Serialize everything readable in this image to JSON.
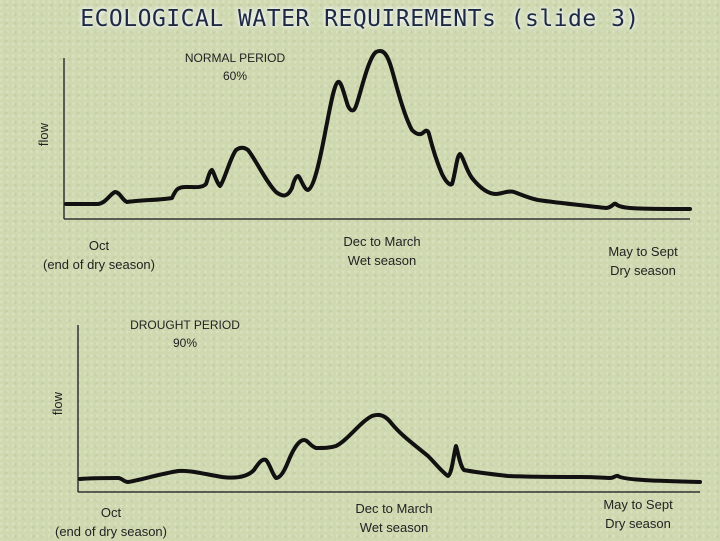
{
  "title": "ECOLOGICAL WATER REQUIREMENTs (slide 3)",
  "normal": {
    "period_label": "NORMAL PERIOD",
    "percent": "60%",
    "axis_label": "flow",
    "season_oct": "Oct",
    "season_oct_sub": "(end of dry season)",
    "season_wet": "Dec to March",
    "season_wet_sub": "Wet season",
    "season_dry": "May to Sept",
    "season_dry_sub": "Dry season"
  },
  "drought": {
    "period_label": "DROUGHT PERIOD",
    "percent": "90%",
    "axis_label": "flow",
    "season_oct": "Oct",
    "season_oct_sub": "(end of dry season)",
    "season_wet": "Dec to March",
    "season_wet_sub": "Wet season",
    "season_dry": "May to Sept",
    "season_dry_sub": "Dry season"
  },
  "colors": {
    "curve": "#111111",
    "axis": "#333333",
    "title": "#1e2a44"
  }
}
